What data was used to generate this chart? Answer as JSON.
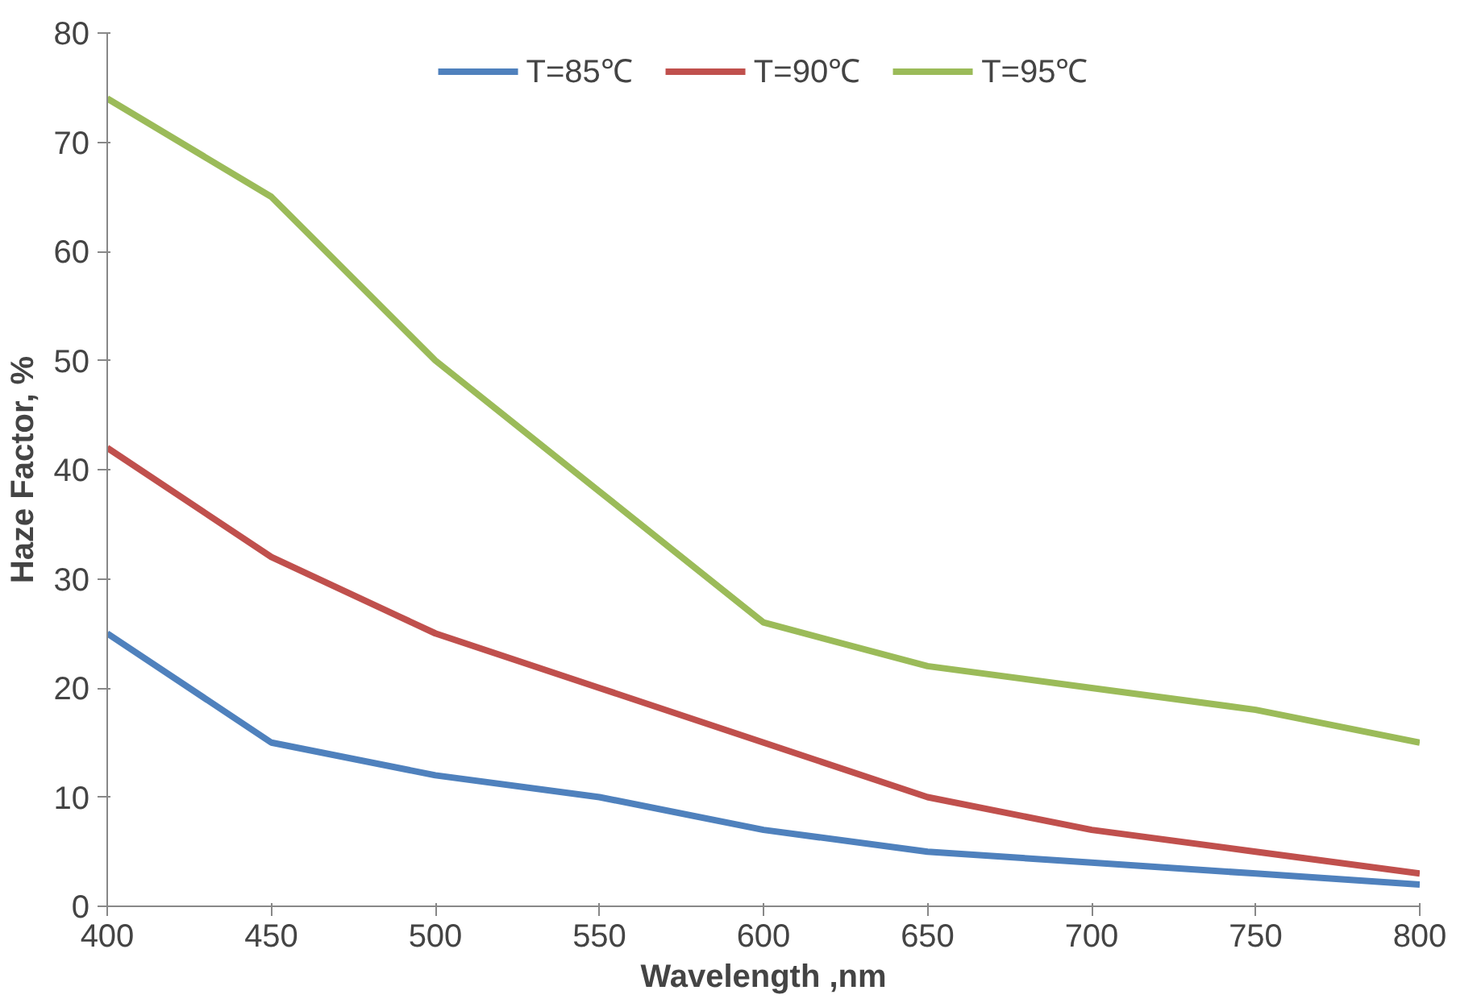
{
  "chart_data": {
    "type": "line",
    "xlabel": "Wavelength ,nm",
    "ylabel": "Haze Factor, %",
    "x": [
      400,
      450,
      500,
      550,
      600,
      650,
      700,
      750,
      800
    ],
    "series": [
      {
        "name": "T=85℃",
        "color": "#4f81bd",
        "values": [
          25,
          15,
          12,
          10,
          7,
          5,
          4,
          3,
          2
        ]
      },
      {
        "name": "T=90℃",
        "color": "#c0504d",
        "values": [
          42,
          32,
          25,
          20,
          15,
          10,
          7,
          5,
          3
        ]
      },
      {
        "name": "T=95℃",
        "color": "#9bbb59",
        "values": [
          74,
          65,
          50,
          38,
          26,
          22,
          20,
          18,
          15
        ]
      }
    ],
    "xlim": [
      400,
      800
    ],
    "ylim": [
      0,
      80
    ],
    "xticks": [
      400,
      450,
      500,
      550,
      600,
      650,
      700,
      750,
      800
    ],
    "yticks": [
      0,
      10,
      20,
      30,
      40,
      50,
      60,
      70,
      80
    ],
    "grid": false,
    "legend": "top",
    "marker": "none",
    "line_style": "solid"
  }
}
